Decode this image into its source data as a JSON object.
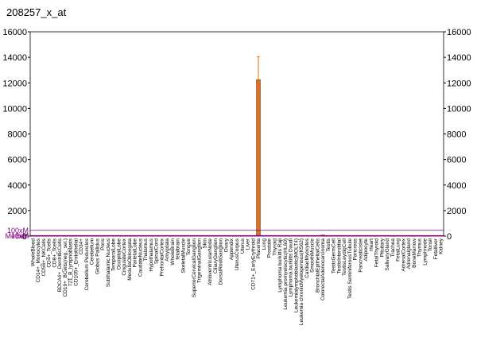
{
  "chart_data": {
    "type": "bar",
    "title": "208257_x_at",
    "categories": [
      "WholeBlood",
      "CD14+_Monocytes",
      "CD56+_NKCells",
      "CD4+_Tcells",
      "CD8+_Tcells",
      "BDCA4+_DentriticCells",
      "CD19+_BCells(neg._sel.)",
      "721_B_lymphoblasts",
      "CD105+_Endothelial",
      "CD34+",
      "Cerebellum Peduncles",
      "Cerebellum",
      "Globus Pallidus",
      "Pons",
      "Subthalamic Nucleus",
      "TemporalLobe",
      "OccipitalLobe",
      "CingulateCortex",
      "MedullaOblongata",
      "ParietalLobe",
      "CaudateNucleus",
      "Thalamus",
      "Hypothalamus",
      "SpinalCord",
      "PrefrontalCortex",
      "Amygdala",
      "WholeBrain",
      "fetalbrain",
      "SkeletalMuscle",
      "Tongue",
      "SuperiorCervicalGanglion",
      "TrigeminalGanglion",
      "Skin",
      "AtrioventricularNode",
      "CiliaryGanglion",
      "DorsalRootGanglion",
      "Ovary",
      "Appendix",
      "UterusCorpus",
      "Uterus",
      "Liver",
      "CD71+_EarlyErythroid",
      "Placenta",
      "Lung",
      "Prostate",
      "Thyroid",
      "Lymphoma burkitts Raji",
      "Leukemia promyelocytic(HL60)",
      "Lymphoma burkitts Daudi",
      "Leukemialymphoblastic(MOLT4)",
      "Leukemia chronicMyelogenous(K562)",
      "CardiacMyocytes",
      "SmoothMuscle",
      "BronchialEpithelialCells",
      "ColorectalAdenocarcinoma",
      "Testis",
      "TestisGermCell",
      "TestisInterstitial",
      "TestisLeydigCell",
      "Testis SeminiferousTubule",
      "Pancreas",
      "PancreaticIslet",
      "Adipocyte",
      "Heart",
      "FetalThyroid",
      "Pituitary",
      "SalivaryGland",
      "Trachea",
      "FetalLung",
      "AdrenalCortex",
      "Adrenalgland",
      "BoneMarrow",
      "Thymus",
      "Lymphnode",
      "Tonsil",
      "Fetalliver",
      "Kidney"
    ],
    "values": [
      30,
      30,
      30,
      30,
      30,
      30,
      30,
      30,
      30,
      30,
      30,
      30,
      30,
      30,
      30,
      30,
      30,
      30,
      30,
      30,
      30,
      30,
      30,
      30,
      30,
      30,
      30,
      30,
      30,
      30,
      30,
      30,
      30,
      30,
      30,
      30,
      30,
      30,
      30,
      30,
      30,
      30,
      12250,
      30,
      30,
      30,
      30,
      30,
      30,
      30,
      30,
      30,
      30,
      30,
      80,
      30,
      30,
      30,
      30,
      30,
      30,
      30,
      30,
      30,
      30,
      30,
      30,
      30,
      30,
      30,
      30,
      30,
      30,
      30,
      30,
      30,
      30
    ],
    "errors": [
      0,
      0,
      0,
      0,
      0,
      0,
      0,
      0,
      0,
      0,
      0,
      0,
      0,
      0,
      0,
      0,
      0,
      0,
      0,
      0,
      0,
      0,
      0,
      0,
      0,
      0,
      0,
      0,
      0,
      0,
      0,
      0,
      0,
      0,
      0,
      0,
      0,
      0,
      0,
      0,
      0,
      0,
      1800,
      0,
      0,
      0,
      0,
      0,
      0,
      0,
      0,
      0,
      0,
      0,
      0,
      0,
      0,
      0,
      0,
      0,
      0,
      0,
      0,
      0,
      0,
      0,
      0,
      0,
      0,
      0,
      0,
      0,
      0,
      0,
      0,
      0,
      0
    ],
    "color": "#e0701e",
    "ylim": [
      0,
      16000
    ],
    "yticks": [
      0,
      2000,
      4000,
      6000,
      8000,
      10000,
      12000,
      14000,
      16000
    ],
    "reference_lines": [
      {
        "label": "100xM",
        "value": 450
      },
      {
        "label": "10xM",
        "value": 45
      },
      {
        "label": "3xM",
        "value": 13.5
      },
      {
        "label": "Median",
        "value": 4.5
      }
    ],
    "reference_color": "#800080"
  }
}
